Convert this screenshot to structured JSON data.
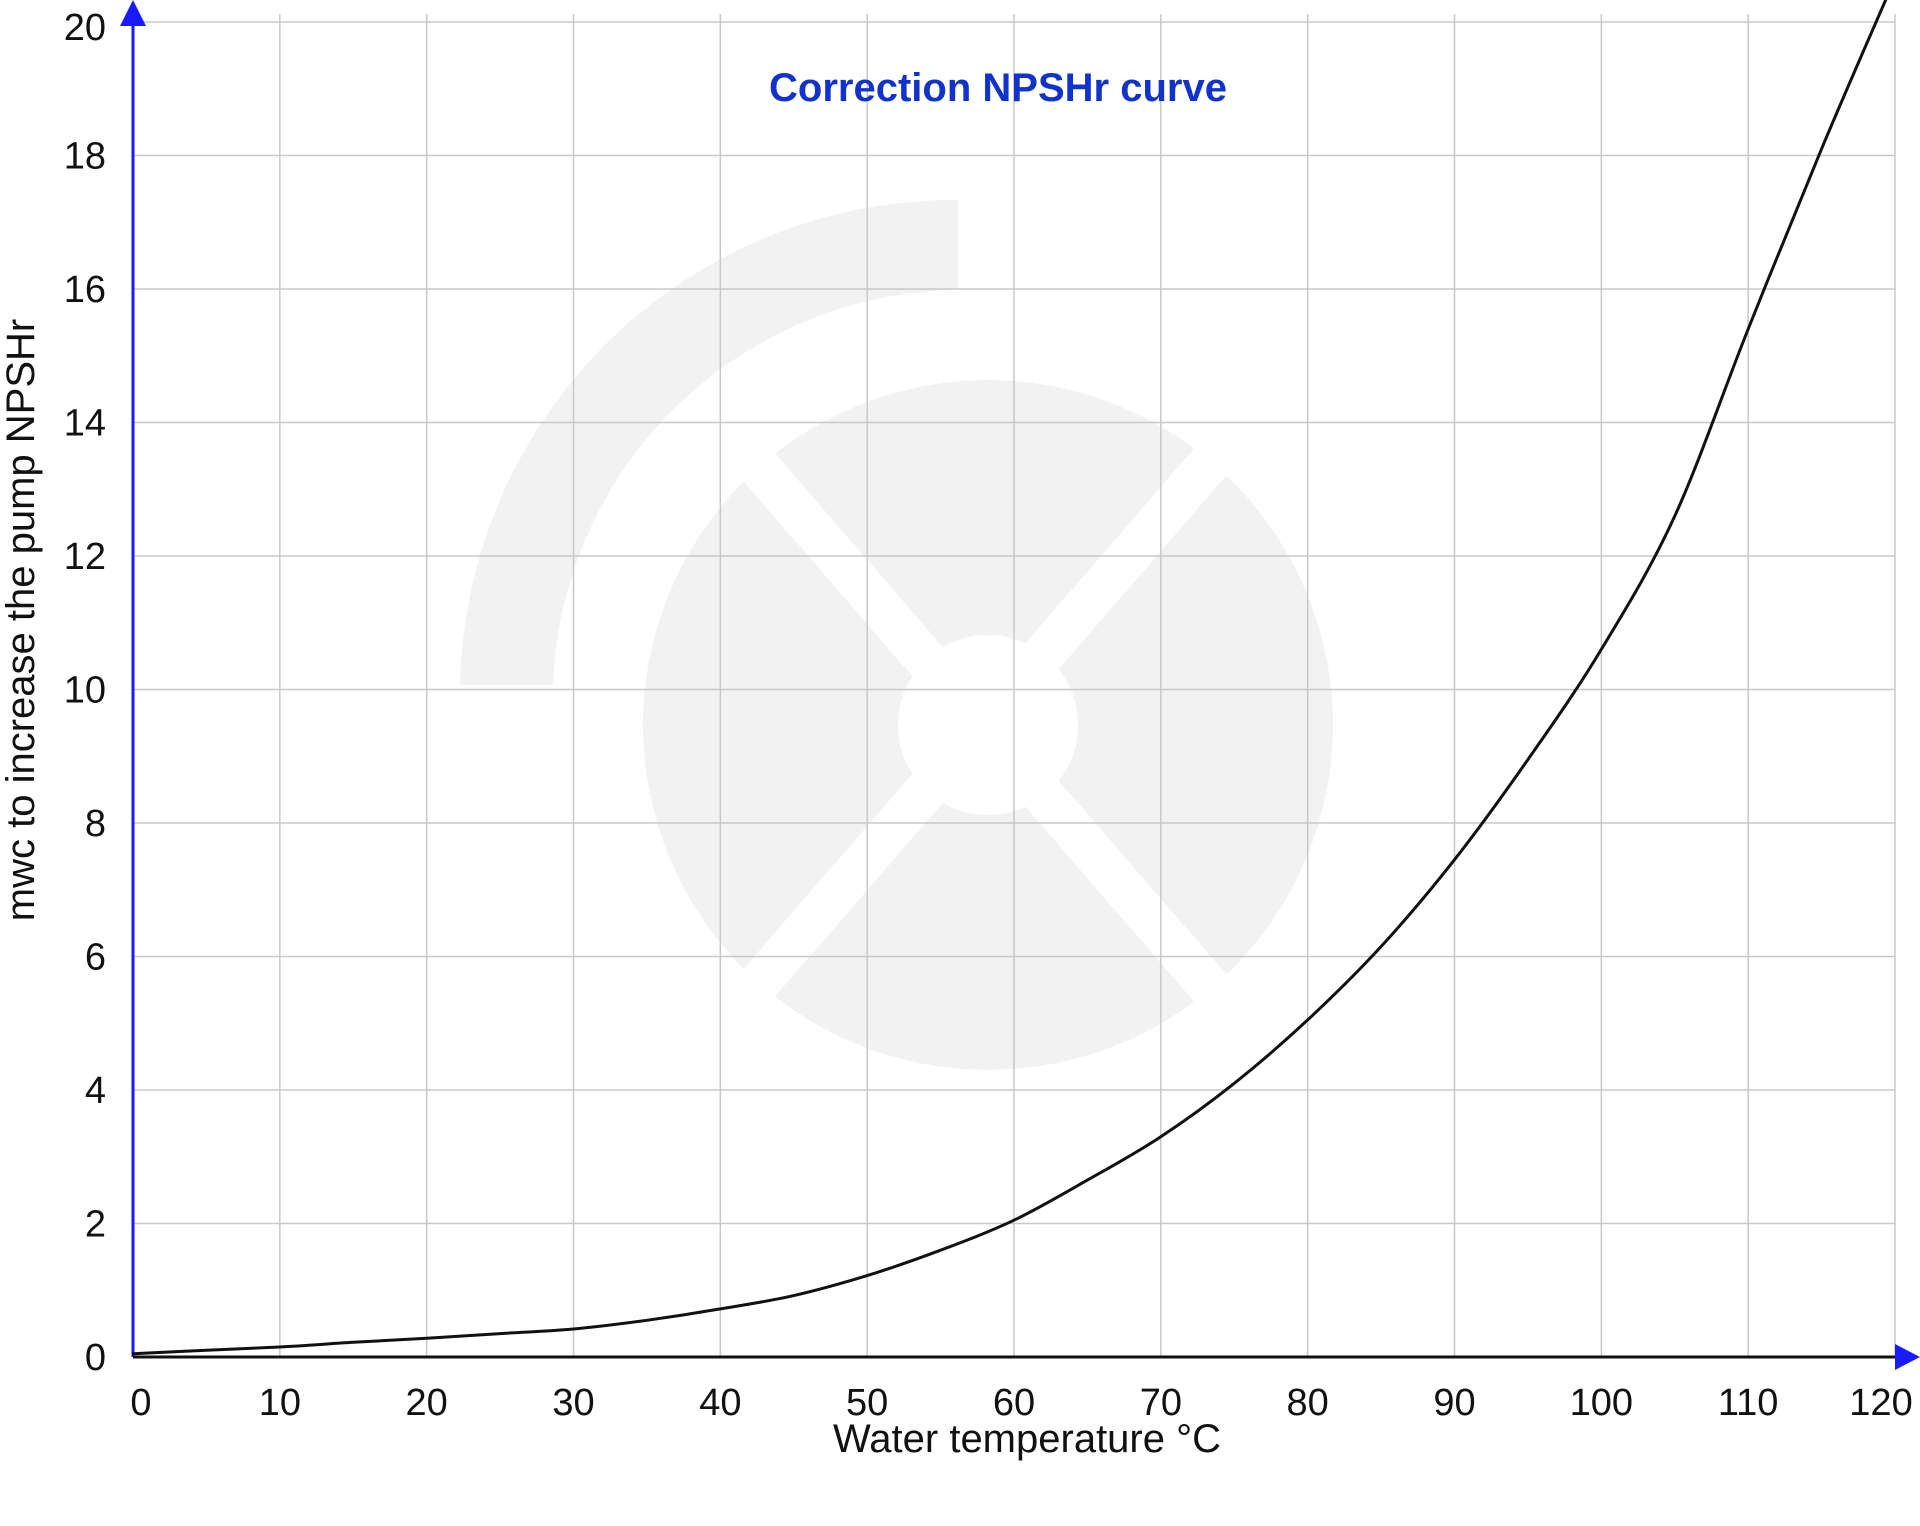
{
  "chart_data": {
    "type": "line",
    "title": "Correction NPSHr curve",
    "xlabel": "Water temperature °C",
    "ylabel": "mwc to increase the pump NPSHr",
    "xlim": [
      0,
      120
    ],
    "ylim": [
      0,
      20
    ],
    "x_ticks": [
      0,
      10,
      20,
      30,
      40,
      50,
      60,
      70,
      80,
      90,
      100,
      110,
      120
    ],
    "y_ticks": [
      0,
      2,
      4,
      6,
      8,
      10,
      12,
      14,
      16,
      18,
      20
    ],
    "grid": true,
    "legend": "none",
    "series": [
      {
        "x": [
          0,
          5,
          10,
          15,
          20,
          25,
          30,
          35,
          40,
          45,
          50,
          55,
          60,
          65,
          70,
          75,
          80,
          85,
          90,
          95,
          100,
          105,
          110,
          115,
          119.5
        ],
        "y": [
          0.05,
          0.1,
          0.15,
          0.22,
          0.28,
          0.35,
          0.42,
          0.55,
          0.72,
          0.92,
          1.22,
          1.6,
          2.05,
          2.65,
          3.3,
          4.1,
          5.05,
          6.15,
          7.45,
          8.95,
          10.6,
          12.6,
          15.4,
          18.1,
          20.4
        ]
      }
    ],
    "colors": {
      "axis": "#1a1aff",
      "title": "#1133cc",
      "grid": "#c8c8c8",
      "line": "#111111",
      "watermark": "#f2f2f2"
    }
  }
}
